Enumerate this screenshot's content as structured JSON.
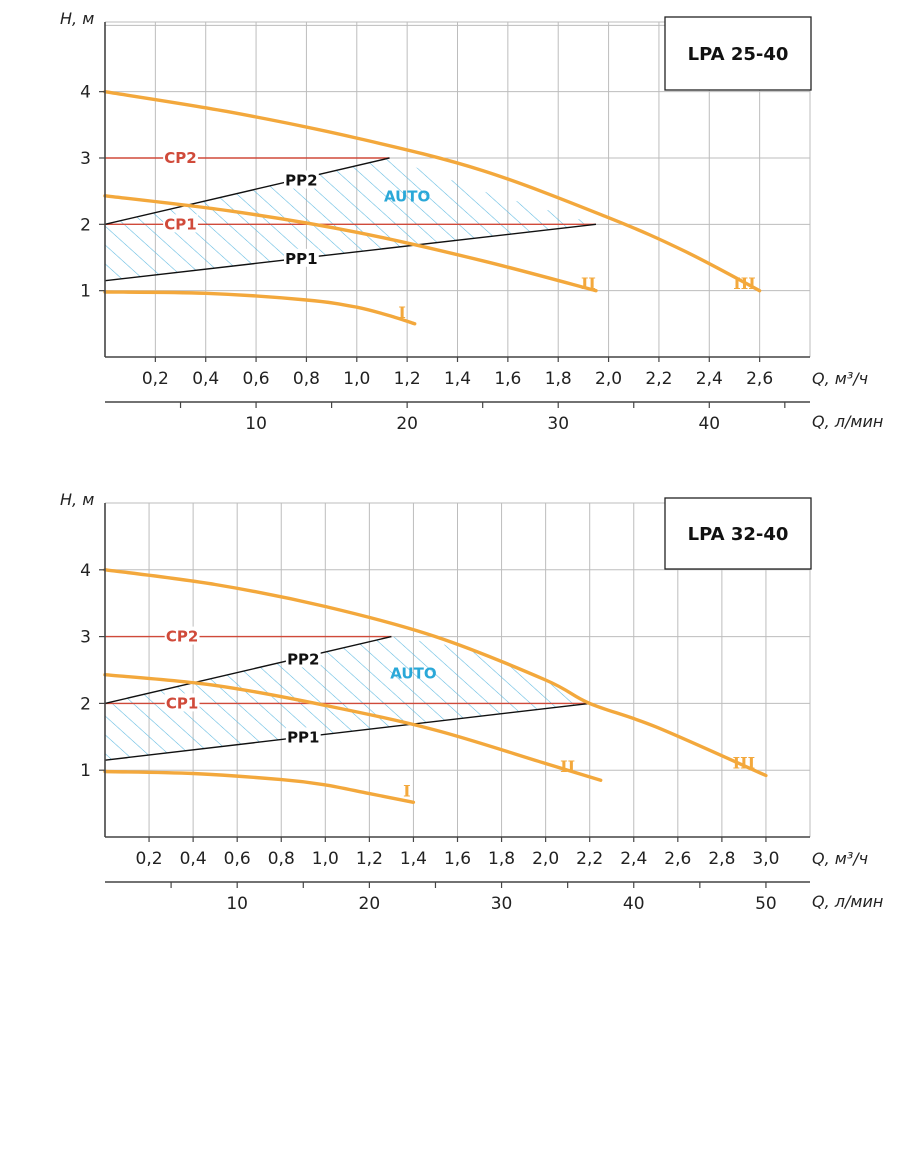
{
  "colors": {
    "curve": "#F3A83C",
    "cp": "#D04A3A",
    "pp": "#111111",
    "auto": "#2AA8D8",
    "hatch": "#5BB8E0",
    "grid": "#BDBDBD",
    "axis": "#444444"
  },
  "chart_data": [
    {
      "type": "line",
      "title": "LPA 25-40",
      "ylabel": "H, м",
      "xlabel": "Q, м³/ч",
      "xlabel2": "Q, л/мин",
      "xlim": [
        0,
        2.8
      ],
      "ylim": [
        0,
        5.05
      ],
      "yticks": [
        1,
        2,
        3,
        4
      ],
      "xticks": [
        0.2,
        0.4,
        0.6,
        0.8,
        1.0,
        1.2,
        1.4,
        1.6,
        1.8,
        2.0,
        2.2,
        2.4,
        2.6
      ],
      "xtick_labels": [
        "0,2",
        "0,4",
        "0,6",
        "0,8",
        "1,0",
        "1,2",
        "1,4",
        "1,6",
        "1,8",
        "2,0",
        "2,2",
        "2,4",
        "2,6"
      ],
      "x2_ticks": [
        10,
        20,
        30,
        40
      ],
      "x2_tick_labels": [
        "10",
        "20",
        "30",
        "40"
      ],
      "x2_factor": 0.06,
      "curves": [
        {
          "name": "I",
          "label": "I",
          "x": [
            0,
            0.4,
            0.8,
            1.0,
            1.15,
            1.23
          ],
          "y": [
            0.98,
            0.96,
            0.86,
            0.75,
            0.6,
            0.5
          ],
          "label_at": [
            1.18,
            0.66
          ]
        },
        {
          "name": "II",
          "label": "II",
          "x": [
            0,
            0.5,
            1.0,
            1.5,
            1.95
          ],
          "y": [
            2.43,
            2.2,
            1.88,
            1.45,
            1.0
          ],
          "label_at": [
            1.92,
            1.1
          ]
        },
        {
          "name": "III",
          "label": "III",
          "x": [
            0,
            0.5,
            1.0,
            1.5,
            2.0,
            2.3,
            2.6
          ],
          "y": [
            4.0,
            3.69,
            3.3,
            2.81,
            2.1,
            1.6,
            1.0
          ],
          "label_at": [
            2.54,
            1.1
          ]
        }
      ],
      "cp_lines": [
        {
          "name": "CP2",
          "label": "CP2",
          "x": [
            0,
            1.13
          ],
          "y": [
            3.0,
            3.0
          ],
          "label_at": [
            0.3,
            3.0
          ]
        },
        {
          "name": "CP1",
          "label": "CP1",
          "x": [
            0,
            1.95
          ],
          "y": [
            2.0,
            2.0
          ],
          "label_at": [
            0.3,
            2.0
          ]
        }
      ],
      "pp_lines": [
        {
          "name": "PP2",
          "label": "PP2",
          "x": [
            0,
            1.13
          ],
          "y": [
            2.0,
            3.0
          ],
          "label_at": [
            0.78,
            2.66
          ]
        },
        {
          "name": "PP1",
          "label": "PP1",
          "x": [
            0,
            1.95
          ],
          "y": [
            1.15,
            2.0
          ],
          "label_at": [
            0.78,
            1.48
          ]
        }
      ],
      "auto_region": {
        "label": "AUTO",
        "label_at": [
          1.2,
          2.42
        ],
        "polygon": [
          [
            0,
            1.15
          ],
          [
            0,
            2.0
          ],
          [
            1.13,
            3.0
          ],
          [
            1.5,
            2.5
          ],
          [
            1.95,
            2.0
          ]
        ]
      }
    },
    {
      "type": "line",
      "title": "LPA 32-40",
      "ylabel": "H, м",
      "xlabel": "Q, м³/ч",
      "xlabel2": "Q, л/мин",
      "xlim": [
        0,
        3.2
      ],
      "ylim": [
        0,
        5.0
      ],
      "yticks": [
        1,
        2,
        3,
        4
      ],
      "xticks": [
        0.2,
        0.4,
        0.6,
        0.8,
        1.0,
        1.2,
        1.4,
        1.6,
        1.8,
        2.0,
        2.2,
        2.4,
        2.6,
        2.8,
        3.0
      ],
      "xtick_labels": [
        "0,2",
        "0,4",
        "0,6",
        "0,8",
        "1,0",
        "1,2",
        "1,4",
        "1,6",
        "1,8",
        "2,0",
        "2,2",
        "2,4",
        "2,6",
        "2,8",
        "3,0"
      ],
      "x2_ticks": [
        10,
        20,
        30,
        40,
        50
      ],
      "x2_tick_labels": [
        "10",
        "20",
        "30",
        "40",
        "50"
      ],
      "x2_factor": 0.06,
      "curves": [
        {
          "name": "I",
          "label": "I",
          "x": [
            0,
            0.4,
            0.8,
            1.0,
            1.2,
            1.4
          ],
          "y": [
            0.98,
            0.95,
            0.86,
            0.78,
            0.65,
            0.52
          ],
          "label_at": [
            1.37,
            0.68
          ]
        },
        {
          "name": "II",
          "label": "II",
          "x": [
            0,
            0.5,
            1.0,
            1.5,
            2.0,
            2.25
          ],
          "y": [
            2.43,
            2.27,
            1.97,
            1.6,
            1.1,
            0.85
          ],
          "label_at": [
            2.1,
            1.05
          ]
        },
        {
          "name": "III",
          "label": "III",
          "x": [
            0,
            0.5,
            1.0,
            1.5,
            2.0,
            2.2,
            2.5,
            3.0
          ],
          "y": [
            4.0,
            3.78,
            3.45,
            3.0,
            2.35,
            2.0,
            1.65,
            0.92
          ],
          "label_at": [
            2.9,
            1.1
          ]
        }
      ],
      "cp_lines": [
        {
          "name": "CP2",
          "label": "CP2",
          "x": [
            0,
            1.3
          ],
          "y": [
            3.0,
            3.0
          ],
          "label_at": [
            0.35,
            3.0
          ]
        },
        {
          "name": "CP1",
          "label": "CP1",
          "x": [
            0,
            2.2
          ],
          "y": [
            2.0,
            2.0
          ],
          "label_at": [
            0.35,
            2.0
          ]
        }
      ],
      "pp_lines": [
        {
          "name": "PP2",
          "label": "PP2",
          "x": [
            0,
            1.3
          ],
          "y": [
            2.0,
            3.0
          ],
          "label_at": [
            0.9,
            2.66
          ]
        },
        {
          "name": "PP1",
          "label": "PP1",
          "x": [
            0,
            2.2
          ],
          "y": [
            1.15,
            2.0
          ],
          "label_at": [
            0.9,
            1.49
          ]
        }
      ],
      "auto_region": {
        "label": "AUTO",
        "label_at": [
          1.4,
          2.45
        ],
        "polygon": [
          [
            0,
            1.15
          ],
          [
            0,
            2.0
          ],
          [
            1.3,
            3.0
          ],
          [
            1.6,
            2.85
          ],
          [
            1.9,
            2.55
          ],
          [
            2.2,
            2.0
          ]
        ]
      }
    }
  ]
}
